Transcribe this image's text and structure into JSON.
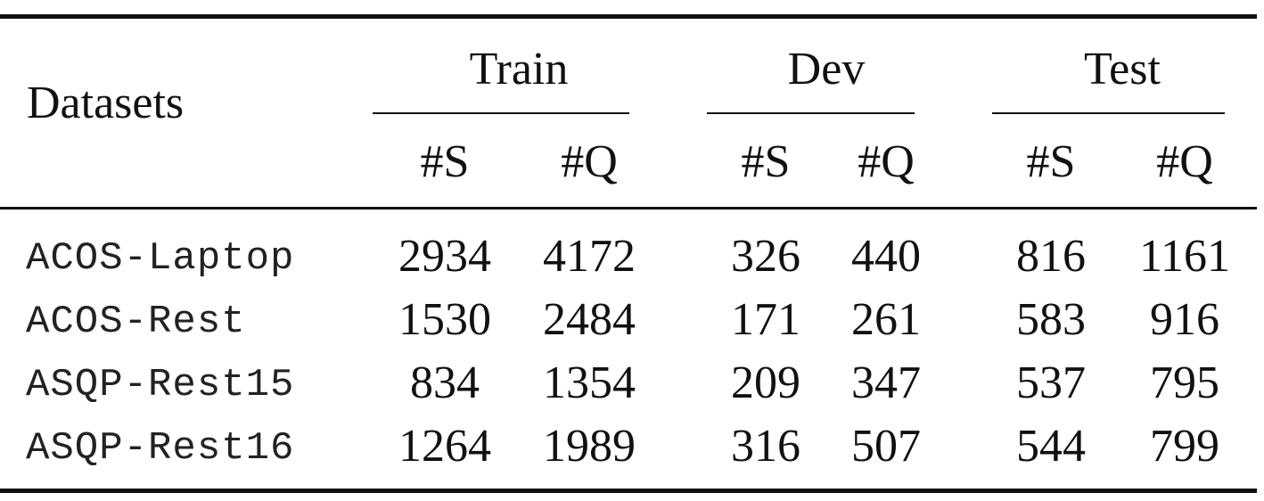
{
  "chart_data": {
    "type": "table",
    "corner_header": "Datasets",
    "group_headers": [
      "Train",
      "Dev",
      "Test"
    ],
    "sub_headers": [
      "#S",
      "#Q",
      "#S",
      "#Q",
      "#S",
      "#Q"
    ],
    "rows": [
      {
        "name": "ACOS-Laptop",
        "values": [
          "2934",
          "4172",
          "326",
          "440",
          "816",
          "1161"
        ]
      },
      {
        "name": "ACOS-Rest",
        "values": [
          "1530",
          "2484",
          "171",
          "261",
          "583",
          "916"
        ]
      },
      {
        "name": "ASQP-Rest15",
        "values": [
          "834",
          "1354",
          "209",
          "347",
          "537",
          "795"
        ]
      },
      {
        "name": "ASQP-Rest16",
        "values": [
          "1264",
          "1989",
          "316",
          "507",
          "544",
          "799"
        ]
      }
    ]
  }
}
